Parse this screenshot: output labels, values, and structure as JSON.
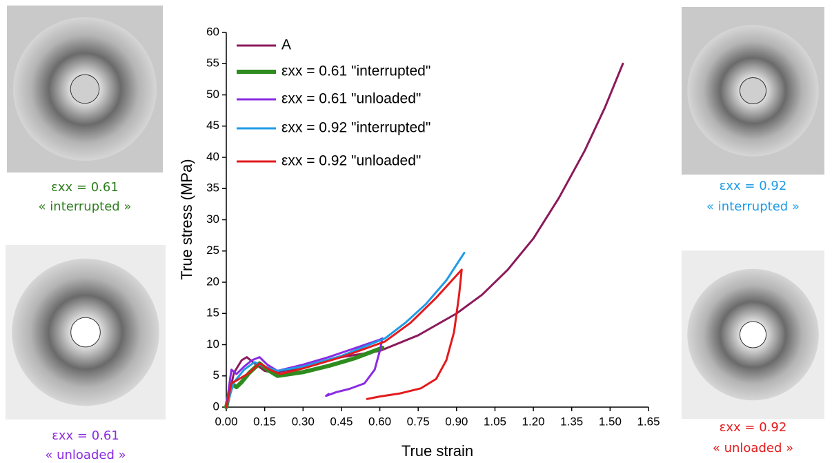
{
  "chart_data": {
    "type": "line",
    "x_label": "True strain",
    "y_label": "True stress (MPa)",
    "xlim": [
      0,
      1.65
    ],
    "ylim": [
      0,
      60
    ],
    "xticks": [
      {
        "value": 0,
        "label": "0.00"
      },
      {
        "value": 0.15,
        "label": "0.15"
      },
      {
        "value": 0.3,
        "label": "0.30"
      },
      {
        "value": 0.45,
        "label": "0.45"
      },
      {
        "value": 0.6,
        "label": "0.60"
      },
      {
        "value": 0.75,
        "label": "0.75"
      },
      {
        "value": 0.9,
        "label": "0.90"
      },
      {
        "value": 1.05,
        "label": "1.05"
      },
      {
        "value": 1.2,
        "label": "1.20"
      },
      {
        "value": 1.35,
        "label": "1.35"
      },
      {
        "value": 1.5,
        "label": "1.50"
      },
      {
        "value": 1.65,
        "label": "1.65"
      }
    ],
    "yticks": [
      0,
      5,
      10,
      15,
      20,
      25,
      30,
      35,
      40,
      45,
      50,
      55,
      60
    ],
    "series": [
      {
        "name": "A",
        "color": "#8b1a5c",
        "width": 3,
        "x": [
          0,
          0.03,
          0.06,
          0.08,
          0.11,
          0.15,
          0.19,
          0.25,
          0.35,
          0.45,
          0.6,
          0.75,
          0.9,
          1.0,
          1.1,
          1.2,
          1.3,
          1.4,
          1.48,
          1.55
        ],
        "values": [
          0,
          5.5,
          7.5,
          8,
          7,
          5.8,
          5.5,
          6,
          7,
          8,
          9,
          11.5,
          15,
          18,
          22,
          27,
          33.5,
          41,
          48,
          55
        ]
      },
      {
        "name": "εxx = 0.61 \"interrupted\"",
        "color": "#2e8b1e",
        "width": 6,
        "x": [
          0,
          0.02,
          0.04,
          0.06,
          0.09,
          0.13,
          0.16,
          0.2,
          0.3,
          0.4,
          0.5,
          0.61
        ],
        "values": [
          0,
          3.8,
          3.2,
          4,
          5.5,
          7,
          6,
          5,
          5.6,
          6.6,
          7.8,
          9.5
        ]
      },
      {
        "name": "εxx = 0.61 \"unloaded\"",
        "color": "#8a2be2",
        "width": 3,
        "x": [
          0,
          0.02,
          0.04,
          0.07,
          0.1,
          0.13,
          0.16,
          0.2,
          0.3,
          0.4,
          0.5,
          0.6,
          0.61,
          0.6,
          0.58,
          0.54,
          0.48,
          0.43,
          0.39,
          0.4
        ],
        "values": [
          0,
          6,
          5.3,
          6.5,
          7.5,
          8,
          6.8,
          5.8,
          6.8,
          8,
          9.4,
          10.8,
          11,
          9,
          6,
          3.8,
          2.9,
          2.4,
          1.8,
          2.1
        ]
      },
      {
        "name": "εxx = 0.92 \"interrupted\"",
        "color": "#1e9be6",
        "width": 3,
        "x": [
          0,
          0.03,
          0.07,
          0.11,
          0.15,
          0.2,
          0.3,
          0.45,
          0.62,
          0.7,
          0.78,
          0.86,
          0.93
        ],
        "values": [
          0,
          4,
          6,
          7.2,
          6.5,
          5.8,
          6.5,
          8.2,
          11,
          13.5,
          16.5,
          20.3,
          24.7
        ]
      },
      {
        "name": "εxx = 0.92 \"unloaded\"",
        "color": "#e31a1c",
        "width": 3,
        "x": [
          0,
          0.02,
          0.05,
          0.09,
          0.13,
          0.17,
          0.21,
          0.3,
          0.45,
          0.62,
          0.72,
          0.82,
          0.92,
          0.91,
          0.89,
          0.86,
          0.82,
          0.76,
          0.68,
          0.6,
          0.55
        ],
        "values": [
          0,
          3.8,
          4.5,
          5.5,
          7,
          6,
          5.3,
          6.2,
          8,
          10.5,
          13.5,
          17.5,
          22,
          18,
          12,
          7.5,
          4.5,
          3,
          2.2,
          1.7,
          1.3
        ]
      }
    ]
  },
  "panels": [
    {
      "strain": "εxx = 0.61",
      "state": "« interrupted »",
      "color": "#2e7d1e"
    },
    {
      "strain": "εxx = 0.61",
      "state": "« unloaded »",
      "color": "#8a2be2"
    },
    {
      "strain": "εxx = 0.92",
      "state": "« interrupted »",
      "color": "#1e9be6"
    },
    {
      "strain": "εxx = 0.92",
      "state": "« unloaded »",
      "color": "#e31a1c"
    }
  ]
}
